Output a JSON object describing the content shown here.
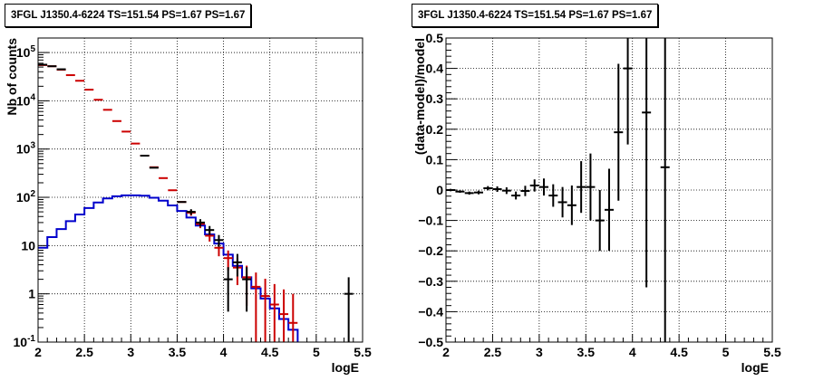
{
  "chart_data": [
    {
      "type": "histogram",
      "title": "3FGL J1350.4-6224 TS=151.54 PS=1.67 PS=1.67",
      "xlabel": "logE",
      "ylabel": "Nb of counts",
      "xlim": [
        2,
        5.5
      ],
      "ylim": [
        0.1,
        200000
      ],
      "yscale": "log",
      "grid": true,
      "x_ticks": [
        "2",
        "2.5",
        "3",
        "3.5",
        "4",
        "4.5",
        "5",
        "5.5"
      ],
      "y_ticks": [
        "10^-1",
        "1",
        "10",
        "10^2",
        "10^3",
        "10^4",
        "10^5"
      ],
      "series": [
        {
          "color": "#cc0000",
          "style": "markers",
          "points": [
            {
              "x": 2.05,
              "y": 55000
            },
            {
              "x": 2.15,
              "y": 52000
            },
            {
              "x": 2.25,
              "y": 44000
            },
            {
              "x": 2.35,
              "y": 34000
            },
            {
              "x": 2.45,
              "y": 26000
            },
            {
              "x": 2.55,
              "y": 17000
            },
            {
              "x": 2.65,
              "y": 10500
            },
            {
              "x": 2.75,
              "y": 6500
            },
            {
              "x": 2.85,
              "y": 3800
            },
            {
              "x": 2.95,
              "y": 2300
            },
            {
              "x": 3.05,
              "y": 1300
            },
            {
              "x": 3.15,
              "y": 730
            },
            {
              "x": 3.25,
              "y": 420
            },
            {
              "x": 3.35,
              "y": 250
            },
            {
              "x": 3.45,
              "y": 140
            },
            {
              "x": 3.55,
              "y": 80
            },
            {
              "x": 3.65,
              "y": 48
            },
            {
              "x": 3.75,
              "y": 28
            },
            {
              "x": 3.85,
              "y": 16
            },
            {
              "x": 3.95,
              "y": 9
            },
            {
              "x": 4.05,
              "y": 5.5
            },
            {
              "x": 4.15,
              "y": 3.5
            },
            {
              "x": 4.25,
              "y": 2.2
            },
            {
              "x": 4.35,
              "y": 1.4
            },
            {
              "x": 4.45,
              "y": 0.9
            },
            {
              "x": 4.55,
              "y": 0.6
            },
            {
              "x": 4.65,
              "y": 0.38
            },
            {
              "x": 4.75,
              "y": 0.25
            }
          ]
        },
        {
          "color": "#000000",
          "style": "markers",
          "points": [
            {
              "x": 2.05,
              "y": 56000
            },
            {
              "x": 2.15,
              "y": 52000
            },
            {
              "x": 2.25,
              "y": 45000
            },
            {
              "x": 3.15,
              "y": 730
            },
            {
              "x": 3.25,
              "y": 410
            },
            {
              "x": 3.55,
              "y": 80
            },
            {
              "x": 3.65,
              "y": 50
            },
            {
              "x": 3.75,
              "y": 30
            },
            {
              "x": 3.85,
              "y": 21
            },
            {
              "x": 3.95,
              "y": 13
            },
            {
              "x": 4.05,
              "y": 2
            },
            {
              "x": 4.15,
              "y": 4.5
            },
            {
              "x": 4.25,
              "y": 2
            },
            {
              "x": 5.35,
              "y": 1
            }
          ]
        },
        {
          "color": "#0000cc",
          "style": "step",
          "edges": [
            2.0,
            2.1,
            2.2,
            2.3,
            2.4,
            2.5,
            2.6,
            2.7,
            2.8,
            2.9,
            3.0,
            3.1,
            3.2,
            3.3,
            3.4,
            3.5,
            3.6,
            3.7,
            3.8,
            3.9,
            4.0,
            4.1,
            4.2,
            4.3,
            4.4,
            4.5,
            4.6,
            4.7,
            4.8
          ],
          "values": [
            9,
            15,
            22,
            32,
            44,
            60,
            78,
            95,
            105,
            110,
            110,
            108,
            98,
            85,
            68,
            52,
            38,
            26,
            17,
            11,
            6.5,
            3.8,
            2.2,
            1.3,
            0.8,
            0.5,
            0.3,
            0.18
          ]
        }
      ]
    },
    {
      "type": "scatter",
      "title": "3FGL J1350.4-6224 TS=151.54 PS=1.67 PS=1.67",
      "xlabel": "logE",
      "ylabel": "(data-model)/model",
      "xlim": [
        2,
        5.5
      ],
      "ylim": [
        -0.5,
        0.5
      ],
      "grid": true,
      "x_ticks": [
        "2",
        "2.5",
        "3",
        "3.5",
        "4",
        "4.5",
        "5",
        "5.5"
      ],
      "y_ticks": [
        "−0.5",
        "−0.4",
        "−0.3",
        "−0.2",
        "−0.1",
        "0",
        "0.1",
        "0.2",
        "0.3",
        "0.4",
        "0.5"
      ],
      "series": [
        {
          "color": "#000000",
          "style": "markers",
          "points": [
            {
              "x": 2.05,
              "y": 0.0,
              "err": 0.004
            },
            {
              "x": 2.15,
              "y": -0.005,
              "err": 0.004
            },
            {
              "x": 2.25,
              "y": -0.01,
              "err": 0.005
            },
            {
              "x": 2.35,
              "y": -0.008,
              "err": 0.006
            },
            {
              "x": 2.45,
              "y": 0.006,
              "err": 0.007
            },
            {
              "x": 2.55,
              "y": 0.003,
              "err": 0.009
            },
            {
              "x": 2.65,
              "y": -0.002,
              "err": 0.011
            },
            {
              "x": 2.75,
              "y": -0.018,
              "err": 0.013
            },
            {
              "x": 2.85,
              "y": -0.003,
              "err": 0.017
            },
            {
              "x": 2.95,
              "y": 0.015,
              "err": 0.02
            },
            {
              "x": 3.05,
              "y": 0.01,
              "err": 0.028
            },
            {
              "x": 3.15,
              "y": -0.018,
              "err": 0.037
            },
            {
              "x": 3.25,
              "y": -0.04,
              "err": 0.05
            },
            {
              "x": 3.35,
              "y": -0.05,
              "err": 0.065
            },
            {
              "x": 3.45,
              "y": 0.01,
              "err": 0.085
            },
            {
              "x": 3.55,
              "y": 0.01,
              "err": 0.11
            },
            {
              "x": 3.65,
              "y": -0.1,
              "err": 0.1
            },
            {
              "x": 3.75,
              "y": -0.065,
              "err": 0.135
            },
            {
              "x": 3.85,
              "y": 0.19,
              "err": 0.225
            },
            {
              "x": 3.95,
              "y": 0.4,
              "err": 0.25
            },
            {
              "x": 4.15,
              "y": 0.255,
              "err": 0.575
            },
            {
              "x": 4.35,
              "y": 0.075,
              "err": 0.8
            }
          ]
        }
      ]
    }
  ]
}
